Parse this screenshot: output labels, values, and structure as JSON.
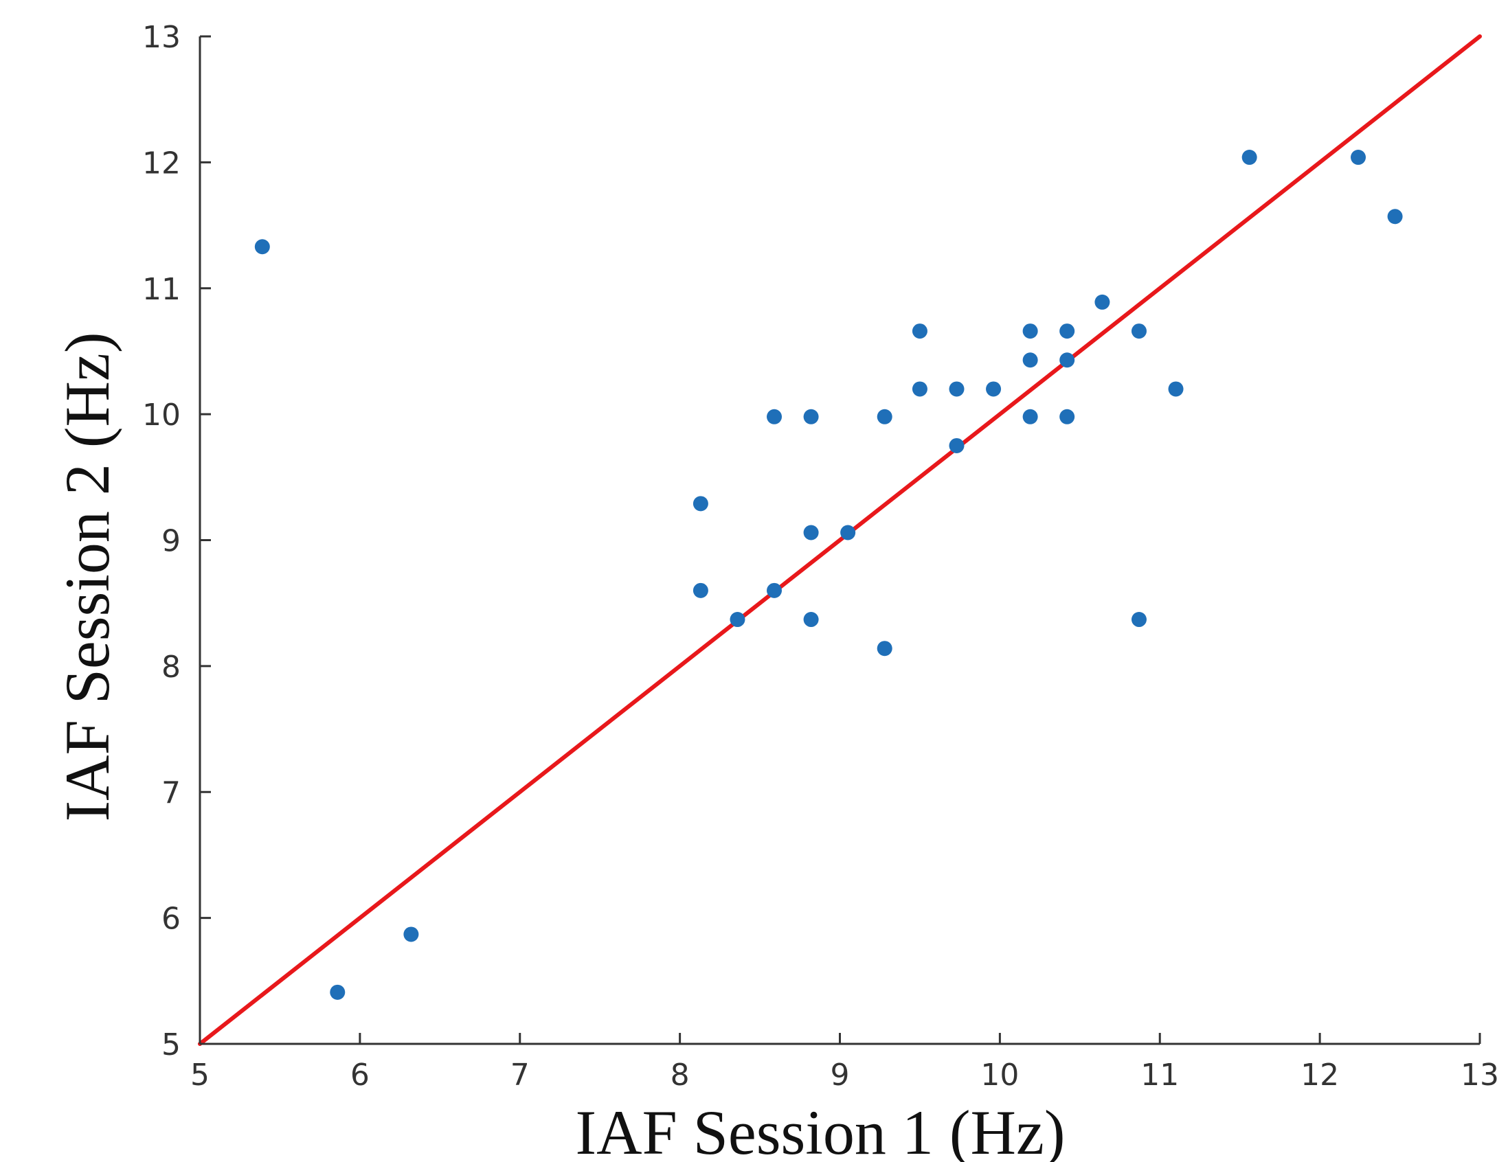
{
  "chart_data": {
    "type": "scatter",
    "xlabel": "IAF Session 1 (Hz)",
    "ylabel": "IAF Session 2 (Hz)",
    "xlim": [
      5,
      13
    ],
    "ylim": [
      5,
      13
    ],
    "xticks": [
      "5",
      "6",
      "7",
      "8",
      "9",
      "10",
      "11",
      "12",
      "13"
    ],
    "yticks": [
      "5",
      "6",
      "7",
      "8",
      "9",
      "10",
      "11",
      "12",
      "13"
    ],
    "grid": false,
    "colors": {
      "points": "#1f6fb8",
      "line": "#e8181b",
      "axis": "#333333"
    },
    "reference_line": {
      "x": [
        5,
        13
      ],
      "y": [
        5,
        13
      ]
    },
    "series": [
      {
        "x": [
          5.39,
          5.86,
          6.32,
          8.13,
          8.13,
          8.36,
          8.59,
          8.59,
          8.82,
          8.82,
          8.82,
          9.05,
          9.28,
          9.28,
          9.5,
          9.5,
          9.73,
          9.73,
          9.96,
          10.19,
          10.19,
          10.19,
          10.42,
          10.42,
          10.42,
          10.64,
          10.87,
          10.87,
          11.1,
          11.56,
          12.24,
          12.47
        ],
        "y": [
          11.33,
          5.41,
          5.87,
          9.29,
          8.6,
          8.37,
          8.6,
          9.98,
          9.98,
          9.06,
          8.37,
          9.06,
          9.98,
          8.14,
          10.66,
          10.2,
          10.2,
          9.75,
          10.2,
          10.66,
          10.43,
          9.98,
          10.66,
          10.43,
          9.98,
          10.89,
          10.66,
          8.37,
          10.2,
          12.04,
          12.04,
          11.57
        ]
      }
    ]
  }
}
